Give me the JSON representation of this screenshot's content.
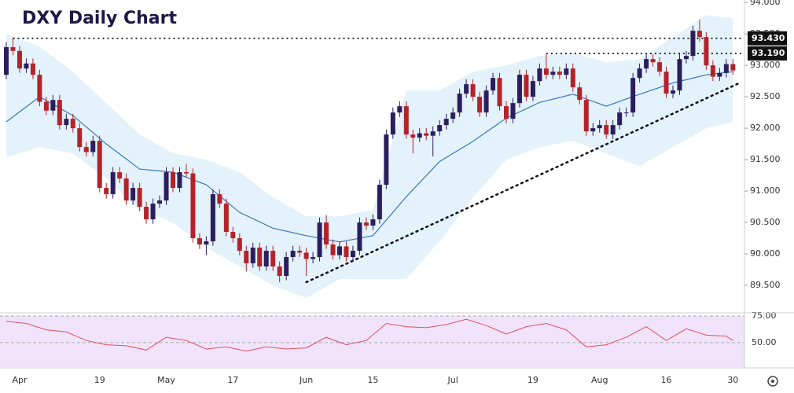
{
  "chart_data": {
    "type": "candlestick",
    "title": "DXY Daily Chart",
    "categories": [
      null,
      null,
      "Apr",
      null,
      null,
      null,
      null,
      null,
      null,
      null,
      null,
      null,
      null,
      null,
      "19",
      null,
      null,
      null,
      null,
      null,
      null,
      null,
      null,
      null,
      "May",
      null,
      null,
      null,
      null,
      null,
      null,
      null,
      null,
      null,
      "17",
      null,
      null,
      null,
      null,
      null,
      null,
      null,
      null,
      null,
      null,
      "Jun",
      null,
      null,
      null,
      null,
      null,
      null,
      null,
      null,
      null,
      "15",
      null,
      null,
      null,
      null,
      null,
      null,
      null,
      null,
      null,
      null,
      null,
      "Jul",
      null,
      null,
      null,
      null,
      null,
      null,
      null,
      null,
      null,
      null,
      null,
      "19",
      null,
      null,
      null,
      null,
      null,
      null,
      null,
      null,
      null,
      "Aug",
      null,
      null,
      null,
      null,
      null,
      null,
      null,
      null,
      null,
      "16",
      null,
      null,
      null,
      null,
      null,
      null,
      null,
      null,
      null,
      "30"
    ],
    "open": [
      92.85,
      93.29,
      93.23,
      92.95,
      93.03,
      92.85,
      92.42,
      92.28,
      92.45,
      92.05,
      92.15,
      92.0,
      91.7,
      91.62,
      91.8,
      91.05,
      90.95,
      91.3,
      91.2,
      90.85,
      91.05,
      90.75,
      90.55,
      90.8,
      90.85,
      91.3,
      91.05,
      91.3,
      91.28,
      90.25,
      90.15,
      90.2,
      90.95,
      90.8,
      90.35,
      90.25,
      90.05,
      89.85,
      90.1,
      89.8,
      90.05,
      89.8,
      89.65,
      89.95,
      90.05,
      90.02,
      89.92,
      89.95,
      90.5,
      90.15,
      89.98,
      90.12,
      89.95,
      90.05,
      90.5,
      90.45,
      90.55,
      91.1,
      91.9,
      92.25,
      92.35,
      91.9,
      91.85,
      91.92,
      91.88,
      91.95,
      92.05,
      92.15,
      92.25,
      92.55,
      92.7,
      92.5,
      92.25,
      92.6,
      92.8,
      92.35,
      92.15,
      92.4,
      92.85,
      92.5,
      92.75,
      92.95,
      92.85,
      92.9,
      92.85,
      92.95,
      92.65,
      92.45,
      91.95,
      92.0,
      92.05,
      91.9,
      92.05,
      92.25,
      92.25,
      92.8,
      92.95,
      93.1,
      93.05,
      92.9,
      92.55,
      92.6,
      93.1,
      93.15,
      93.55,
      93.45,
      93.0,
      92.82,
      92.88,
      93.02
    ],
    "high": [
      93.37,
      93.44,
      93.31,
      93.11,
      93.11,
      92.93,
      92.5,
      92.53,
      92.53,
      92.23,
      92.23,
      92.08,
      91.78,
      91.88,
      91.88,
      91.13,
      91.38,
      91.38,
      91.28,
      91.13,
      91.13,
      90.83,
      90.88,
      90.93,
      91.38,
      91.38,
      91.38,
      91.43,
      91.36,
      90.33,
      90.28,
      91.03,
      91.03,
      90.88,
      90.43,
      90.33,
      90.13,
      90.18,
      90.18,
      90.13,
      90.13,
      89.88,
      90.03,
      90.13,
      90.13,
      90.1,
      90.03,
      90.58,
      90.62,
      90.23,
      90.2,
      90.2,
      90.13,
      90.58,
      90.58,
      90.63,
      91.18,
      91.98,
      92.33,
      92.43,
      92.43,
      91.98,
      92.0,
      92.0,
      92.03,
      92.13,
      92.23,
      92.33,
      92.63,
      92.78,
      92.78,
      92.58,
      92.68,
      92.88,
      92.88,
      92.43,
      92.48,
      92.93,
      92.93,
      92.83,
      93.03,
      93.18,
      92.98,
      92.98,
      93.03,
      93.03,
      92.73,
      92.53,
      92.08,
      92.13,
      92.13,
      92.13,
      92.33,
      92.33,
      92.88,
      93.03,
      93.18,
      93.18,
      93.13,
      92.98,
      92.68,
      93.18,
      93.23,
      93.63,
      93.73,
      93.53,
      93.08,
      92.96,
      93.1,
      93.1
    ],
    "low": [
      92.78,
      93.16,
      92.88,
      92.88,
      92.78,
      92.35,
      92.21,
      92.21,
      91.98,
      91.98,
      91.93,
      91.63,
      91.55,
      91.55,
      90.98,
      90.88,
      90.88,
      91.13,
      90.78,
      90.78,
      90.68,
      90.48,
      90.48,
      90.73,
      90.78,
      90.98,
      90.98,
      91.21,
      90.18,
      90.08,
      89.98,
      90.13,
      90.73,
      90.28,
      90.18,
      89.98,
      89.72,
      89.78,
      89.73,
      89.73,
      89.73,
      89.55,
      89.58,
      89.88,
      89.95,
      89.65,
      89.85,
      89.88,
      90.08,
      89.91,
      89.91,
      89.88,
      89.88,
      89.98,
      90.38,
      90.38,
      90.48,
      91.03,
      91.83,
      92.18,
      91.83,
      91.6,
      91.78,
      91.81,
      91.55,
      91.88,
      91.98,
      92.08,
      92.18,
      92.48,
      92.43,
      92.18,
      92.18,
      92.53,
      92.28,
      92.08,
      92.08,
      92.33,
      92.43,
      92.43,
      92.68,
      92.78,
      92.78,
      92.78,
      92.78,
      92.58,
      92.38,
      91.88,
      91.88,
      91.93,
      91.83,
      91.83,
      91.98,
      92.18,
      92.18,
      92.73,
      92.88,
      92.98,
      92.83,
      92.48,
      92.48,
      92.53,
      93.03,
      93.08,
      93.38,
      92.93,
      92.75,
      92.75,
      92.81,
      92.85
    ],
    "close": [
      93.29,
      93.23,
      92.95,
      93.03,
      92.85,
      92.42,
      92.28,
      92.45,
      92.05,
      92.15,
      92.0,
      91.7,
      91.62,
      91.8,
      91.05,
      90.95,
      91.3,
      91.2,
      90.85,
      91.05,
      90.75,
      90.55,
      90.8,
      90.85,
      91.3,
      91.05,
      91.3,
      91.28,
      90.25,
      90.15,
      90.2,
      90.95,
      90.8,
      90.35,
      90.25,
      90.05,
      89.85,
      90.1,
      89.8,
      90.05,
      89.8,
      89.65,
      89.95,
      90.05,
      90.02,
      89.92,
      89.95,
      90.5,
      90.15,
      89.98,
      90.12,
      89.95,
      90.05,
      90.5,
      90.45,
      90.55,
      91.1,
      91.9,
      92.25,
      92.35,
      91.9,
      91.85,
      91.92,
      91.88,
      91.95,
      92.05,
      92.15,
      92.25,
      92.55,
      92.7,
      92.5,
      92.25,
      92.6,
      92.8,
      92.35,
      92.15,
      92.4,
      92.85,
      92.5,
      92.75,
      92.95,
      92.85,
      92.9,
      92.85,
      92.95,
      92.65,
      92.45,
      91.95,
      92.0,
      92.05,
      91.9,
      92.05,
      92.25,
      92.25,
      92.8,
      92.95,
      93.1,
      93.05,
      92.9,
      92.55,
      92.6,
      93.1,
      93.15,
      93.55,
      93.45,
      93.0,
      92.82,
      92.88,
      93.02,
      92.92
    ],
    "up_color": "#2b1e5e",
    "down_color": "#b3232a",
    "band": {
      "color": "#dbeefa",
      "line_color": "#3b78b8",
      "x": [
        0,
        5,
        10,
        15,
        20,
        25,
        30,
        35,
        40,
        45,
        50,
        55,
        60,
        65,
        70,
        75,
        80,
        85,
        90,
        95,
        100,
        105,
        109
      ],
      "ma": [
        92.1,
        92.5,
        92.2,
        91.75,
        91.35,
        91.3,
        91.1,
        90.66,
        90.41,
        90.29,
        90.19,
        90.29,
        90.91,
        91.47,
        91.79,
        92.16,
        92.41,
        92.54,
        92.35,
        92.54,
        92.72,
        92.85,
        92.9
      ],
      "upper": [
        93.5,
        93.3,
        92.9,
        92.4,
        91.9,
        91.6,
        91.5,
        91.3,
        90.9,
        90.6,
        90.6,
        90.7,
        92.6,
        92.6,
        92.9,
        93.0,
        93.15,
        93.2,
        93.05,
        93.1,
        93.45,
        93.8,
        93.75
      ],
      "lower": [
        91.54,
        91.7,
        91.6,
        91.2,
        90.7,
        90.5,
        90.1,
        89.8,
        89.5,
        89.3,
        89.6,
        89.6,
        89.6,
        90.2,
        90.9,
        91.5,
        91.7,
        91.8,
        91.6,
        91.4,
        91.7,
        92.0,
        92.1
      ]
    },
    "levels": [
      {
        "value": 93.43,
        "label": "93.430",
        "x_start": 1
      },
      {
        "value": 93.19,
        "label": "93.190",
        "x_start": 81
      }
    ],
    "trendline": {
      "x": [
        45,
        110
      ],
      "values": [
        89.55,
        92.72
      ]
    },
    "ylim": [
      89.1,
      94.04
    ],
    "yticks": [
      {
        "value": 89.5,
        "label": "89.500"
      },
      {
        "value": 90,
        "label": "90.000"
      },
      {
        "value": 90.5,
        "label": "90.500"
      },
      {
        "value": 91,
        "label": "91.000"
      },
      {
        "value": 91.5,
        "label": "91.500"
      },
      {
        "value": 92,
        "label": "92.000"
      },
      {
        "value": 92.5,
        "label": "92.500"
      },
      {
        "value": 93,
        "label": "93.000"
      },
      {
        "value": 93.5,
        "label": "93.500"
      },
      {
        "value": 94,
        "label": "94.000"
      }
    ],
    "rsi": {
      "color": "#e0505a",
      "fill": "#f1e3fb",
      "zone": [
        25,
        75
      ],
      "x": [
        0,
        3,
        6,
        9,
        12,
        15,
        18,
        21,
        24,
        27,
        30,
        33,
        36,
        39,
        42,
        45,
        48,
        51,
        54,
        57,
        60,
        63,
        66,
        69,
        72,
        75,
        78,
        81,
        84,
        87,
        90,
        93,
        96,
        99,
        102,
        105,
        108,
        109
      ],
      "values": [
        70,
        68,
        62,
        60,
        52,
        48,
        47,
        43,
        55,
        52,
        44,
        46,
        42,
        46,
        44,
        45,
        55,
        48,
        52,
        68,
        65,
        64,
        67,
        72,
        66,
        58,
        65,
        68,
        62,
        46,
        48,
        55,
        65,
        52,
        63,
        57,
        56,
        52
      ],
      "ylim": [
        27,
        76.5
      ],
      "yticks": [
        {
          "value": 75,
          "label": "75.00"
        },
        {
          "value": 50,
          "label": "50.00"
        }
      ]
    }
  }
}
